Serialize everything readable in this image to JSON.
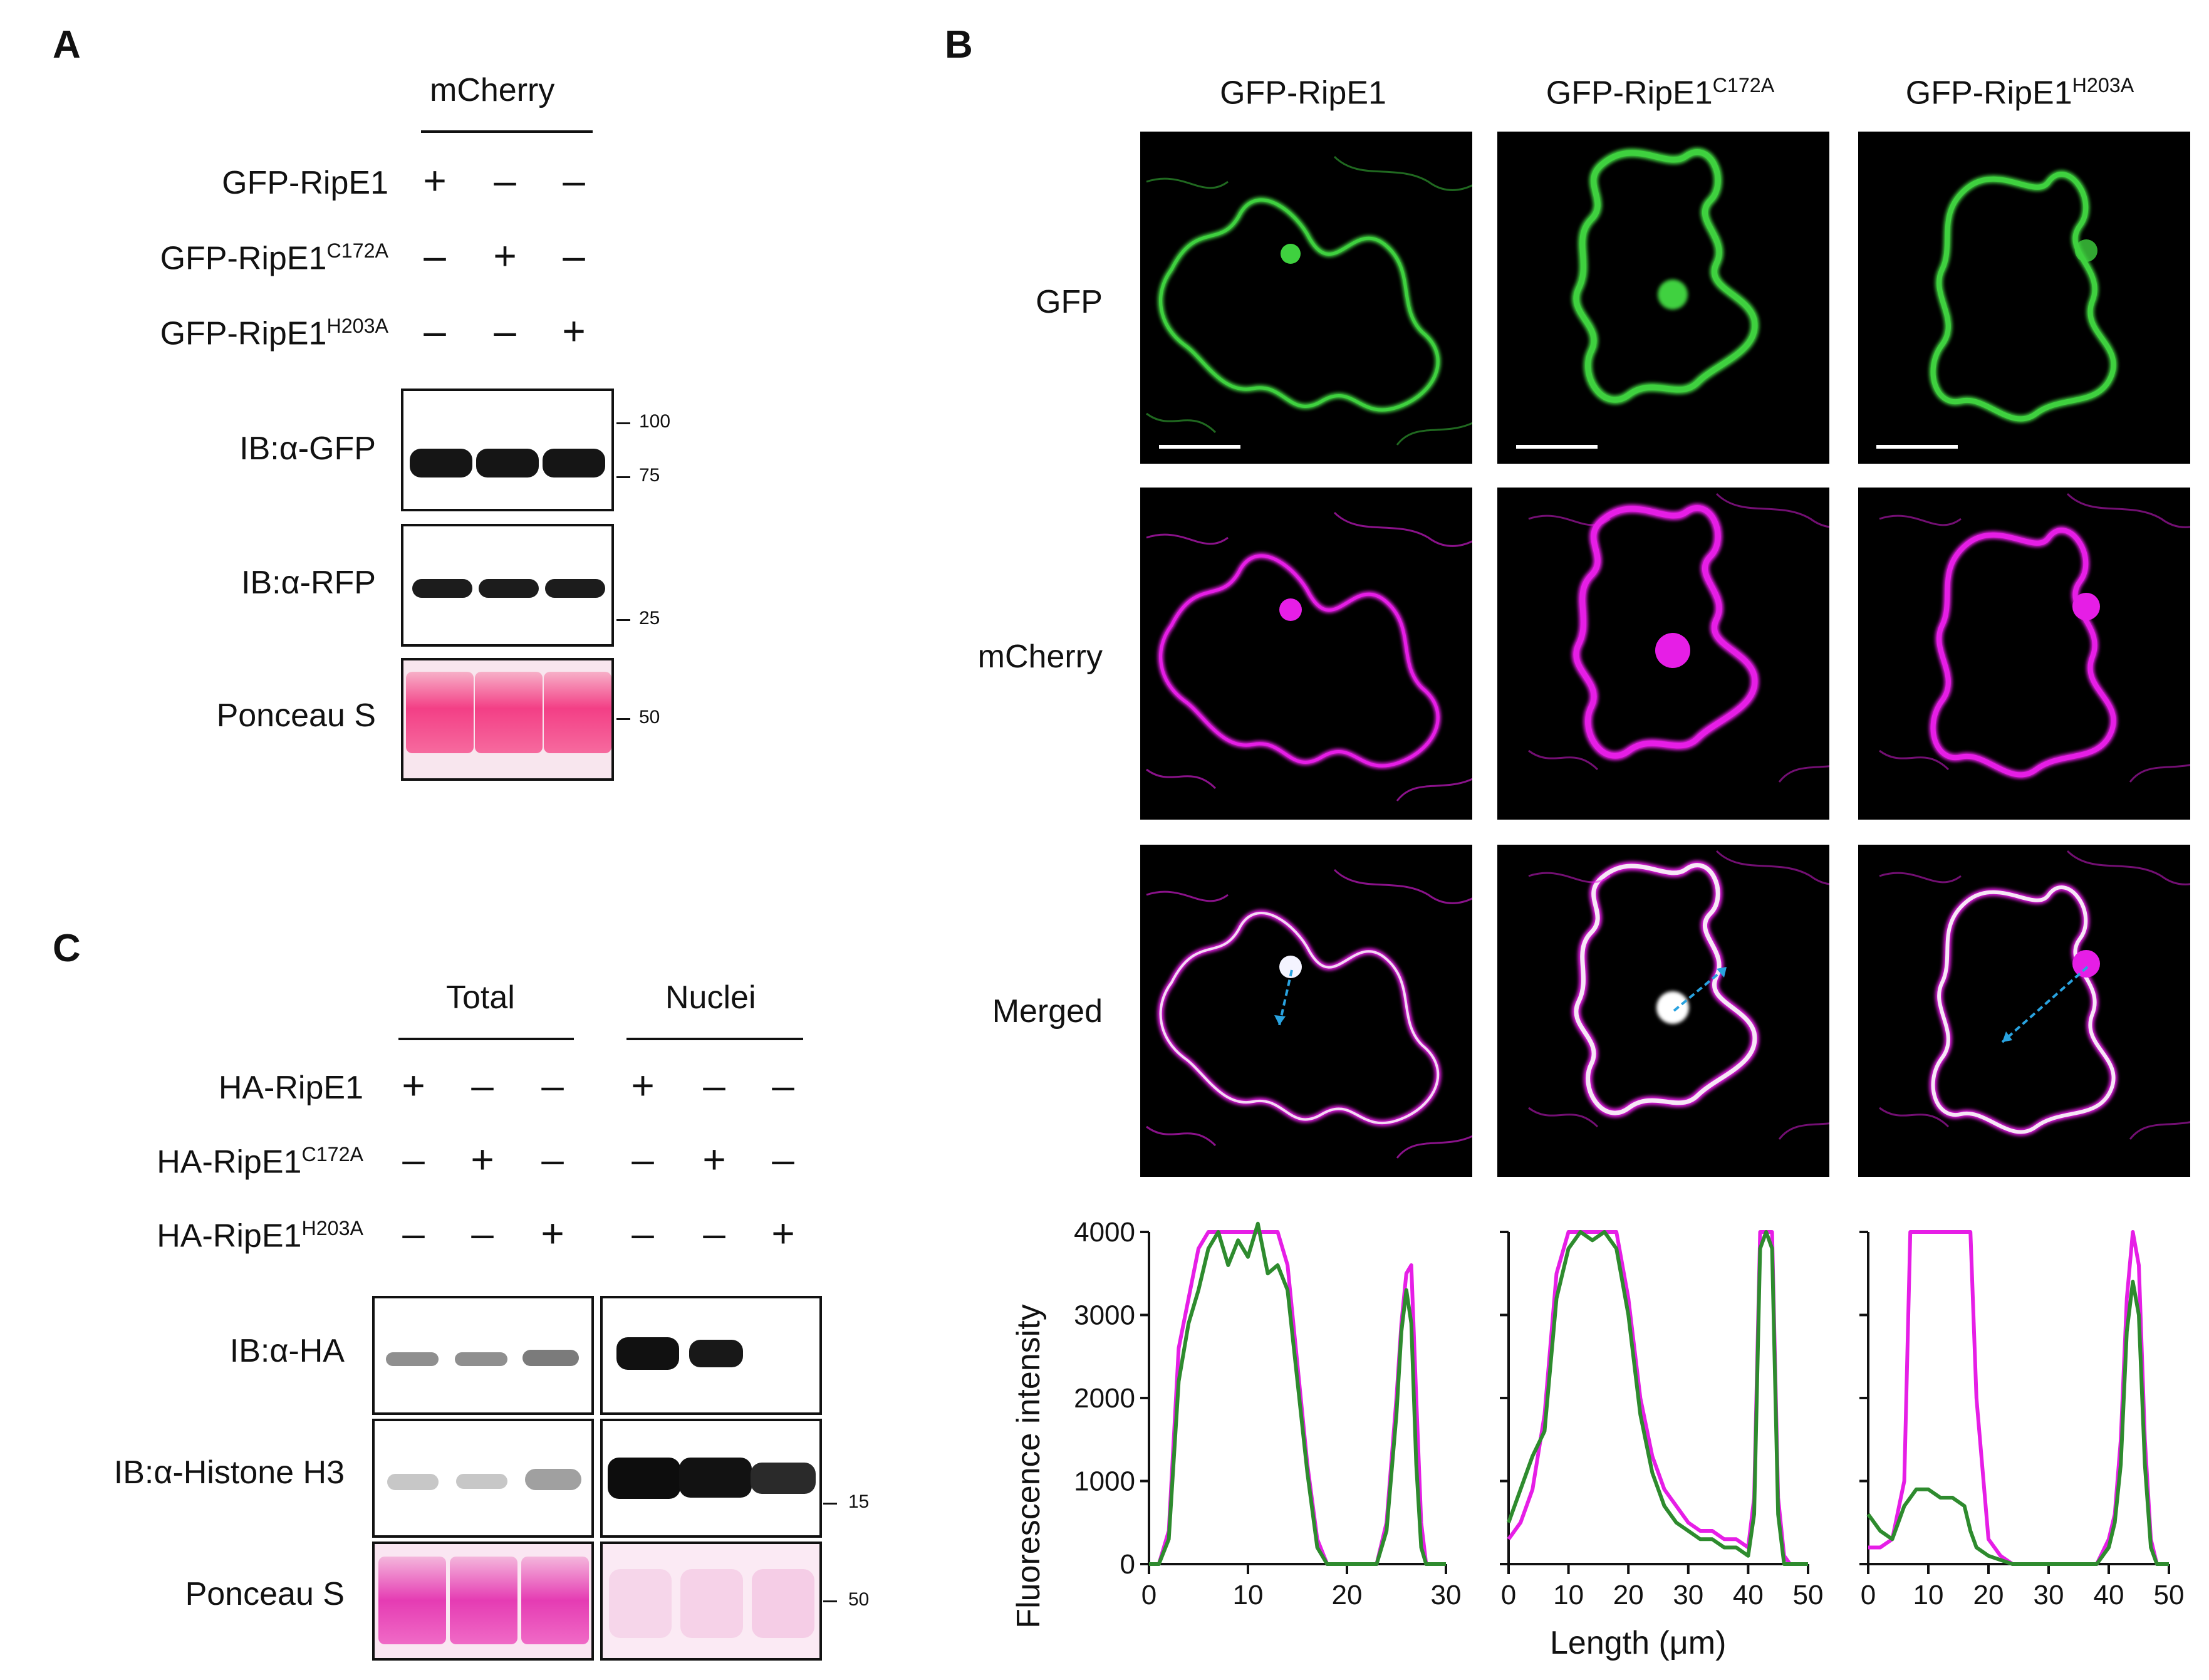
{
  "panelA": {
    "label": "A",
    "header": "mCherry",
    "rows": [
      {
        "name": "GFP-RipE1",
        "sup": "",
        "signs": [
          "+",
          "–",
          "–"
        ]
      },
      {
        "name": "GFP-RipE1",
        "sup": "C172A",
        "signs": [
          "–",
          "+",
          "–"
        ]
      },
      {
        "name": "GFP-RipE1",
        "sup": "H203A",
        "signs": [
          "–",
          "–",
          "+"
        ]
      }
    ],
    "blots": [
      {
        "label": "IB:α-GFP",
        "markers": [
          "100",
          "75"
        ]
      },
      {
        "label": "IB:α-RFP",
        "markers": [
          "25"
        ]
      },
      {
        "label": "Ponceau S",
        "markers": [
          "50"
        ]
      }
    ]
  },
  "panelB": {
    "label": "B",
    "columns": [
      {
        "name": "GFP-RipE1",
        "sup": ""
      },
      {
        "name": "GFP-RipE1",
        "sup": "C172A"
      },
      {
        "name": "GFP-RipE1",
        "sup": "H203A"
      }
    ],
    "rows": [
      "GFP",
      "mCherry",
      "Merged"
    ],
    "colors": {
      "gfp": "#3fd13f",
      "mcherry": "#e61ee6",
      "merged_green": "#2e8b2e",
      "arrow": "#29a3e0"
    }
  },
  "panelC": {
    "label": "C",
    "groups": [
      "Total",
      "Nuclei"
    ],
    "rows": [
      {
        "name": "HA-RipE1",
        "sup": "",
        "signs": [
          "+",
          "–",
          "–",
          "+",
          "–",
          "–"
        ]
      },
      {
        "name": "HA-RipE1",
        "sup": "C172A",
        "signs": [
          "–",
          "+",
          "–",
          "–",
          "+",
          "–"
        ]
      },
      {
        "name": "HA-RipE1",
        "sup": "H203A",
        "signs": [
          "–",
          "–",
          "+",
          "–",
          "–",
          "+"
        ]
      }
    ],
    "blots": [
      {
        "label": "IB:α-HA",
        "markers": []
      },
      {
        "label": "IB:α-Histone H3",
        "markers": [
          "15"
        ]
      },
      {
        "label": "Ponceau S",
        "markers": [
          "50"
        ]
      }
    ]
  },
  "chart_data": [
    {
      "type": "line",
      "ylabel": "Fluorescence intensity",
      "xlabel": "Length (μm)",
      "xlim": [
        0,
        30
      ],
      "ylim": [
        0,
        4000
      ],
      "xticks": [
        0,
        10,
        20,
        30
      ],
      "yticks": [
        0,
        1000,
        2000,
        3000,
        4000
      ],
      "series": [
        {
          "color": "#e61ee6",
          "x": [
            0,
            1,
            2,
            3,
            4,
            5,
            6,
            7,
            8,
            9,
            10,
            11,
            12,
            13,
            14,
            15,
            16,
            17,
            18,
            19,
            20,
            21,
            22,
            23,
            24,
            25,
            25.5,
            26,
            26.5,
            27,
            27.5,
            28,
            30
          ],
          "y": [
            0,
            0,
            400,
            2600,
            3200,
            3800,
            4000,
            4000,
            4000,
            4000,
            4000,
            4000,
            4000,
            4000,
            3600,
            2400,
            1200,
            300,
            0,
            0,
            0,
            0,
            0,
            0,
            500,
            2000,
            2900,
            3500,
            3600,
            2000,
            500,
            0,
            0
          ]
        },
        {
          "color": "#2e8b2e",
          "x": [
            0,
            1,
            2,
            3,
            4,
            5,
            6,
            7,
            8,
            9,
            10,
            11,
            12,
            13,
            14,
            15,
            16,
            17,
            18,
            19,
            20,
            21,
            22,
            23,
            24,
            25,
            25.5,
            26,
            26.5,
            27,
            27.5,
            28,
            30
          ],
          "y": [
            0,
            0,
            300,
            2200,
            2900,
            3300,
            3800,
            4000,
            3600,
            3900,
            3700,
            4100,
            3500,
            3600,
            3300,
            2200,
            1100,
            200,
            0,
            0,
            0,
            0,
            0,
            0,
            400,
            1800,
            2800,
            3300,
            2900,
            1200,
            200,
            0,
            0
          ]
        }
      ]
    },
    {
      "type": "line",
      "xlim": [
        0,
        50
      ],
      "ylim": [
        0,
        4000
      ],
      "xticks": [
        0,
        10,
        20,
        30,
        40,
        50
      ],
      "series": [
        {
          "color": "#e61ee6",
          "x": [
            0,
            2,
            4,
            6,
            8,
            10,
            12,
            14,
            16,
            18,
            20,
            22,
            24,
            26,
            28,
            30,
            32,
            34,
            36,
            38,
            40,
            41,
            42,
            43,
            44,
            45,
            46,
            47,
            50
          ],
          "y": [
            300,
            500,
            900,
            1800,
            3500,
            4000,
            4000,
            4000,
            4000,
            4000,
            3200,
            2000,
            1300,
            900,
            700,
            500,
            400,
            400,
            300,
            300,
            200,
            800,
            4000,
            4000,
            4000,
            800,
            100,
            0,
            0
          ]
        },
        {
          "color": "#2e8b2e",
          "x": [
            0,
            2,
            4,
            6,
            8,
            10,
            12,
            14,
            16,
            18,
            20,
            22,
            24,
            26,
            28,
            30,
            32,
            34,
            36,
            38,
            40,
            41,
            42,
            43,
            44,
            45,
            46,
            47,
            50
          ],
          "y": [
            500,
            900,
            1300,
            1600,
            3200,
            3800,
            4000,
            3900,
            4000,
            3800,
            3000,
            1800,
            1100,
            700,
            500,
            400,
            300,
            300,
            200,
            200,
            100,
            600,
            3800,
            4000,
            3800,
            600,
            0,
            0,
            0
          ]
        }
      ]
    },
    {
      "type": "line",
      "xlim": [
        0,
        50
      ],
      "ylim": [
        0,
        4000
      ],
      "xticks": [
        0,
        10,
        20,
        30,
        40,
        50
      ],
      "series": [
        {
          "color": "#e61ee6",
          "x": [
            0,
            2,
            4,
            6,
            7,
            8,
            10,
            12,
            14,
            16,
            17,
            18,
            20,
            22,
            24,
            26,
            28,
            30,
            32,
            34,
            36,
            38,
            40,
            41,
            42,
            43,
            44,
            45,
            46,
            47,
            48,
            50
          ],
          "y": [
            200,
            200,
            300,
            1000,
            4000,
            4000,
            4000,
            4000,
            4000,
            4000,
            4000,
            2000,
            300,
            100,
            0,
            0,
            0,
            0,
            0,
            0,
            0,
            0,
            300,
            600,
            1500,
            3200,
            4000,
            3600,
            1500,
            300,
            0,
            0
          ]
        },
        {
          "color": "#2e8b2e",
          "x": [
            0,
            2,
            4,
            6,
            8,
            10,
            12,
            14,
            16,
            17,
            18,
            20,
            22,
            24,
            26,
            28,
            30,
            32,
            34,
            36,
            38,
            40,
            41,
            42,
            43,
            44,
            45,
            46,
            47,
            48,
            50
          ],
          "y": [
            600,
            400,
            300,
            700,
            900,
            900,
            800,
            800,
            700,
            400,
            200,
            100,
            50,
            0,
            0,
            0,
            0,
            0,
            0,
            0,
            0,
            200,
            500,
            1200,
            2800,
            3400,
            3000,
            1200,
            200,
            0,
            0
          ]
        }
      ]
    }
  ]
}
